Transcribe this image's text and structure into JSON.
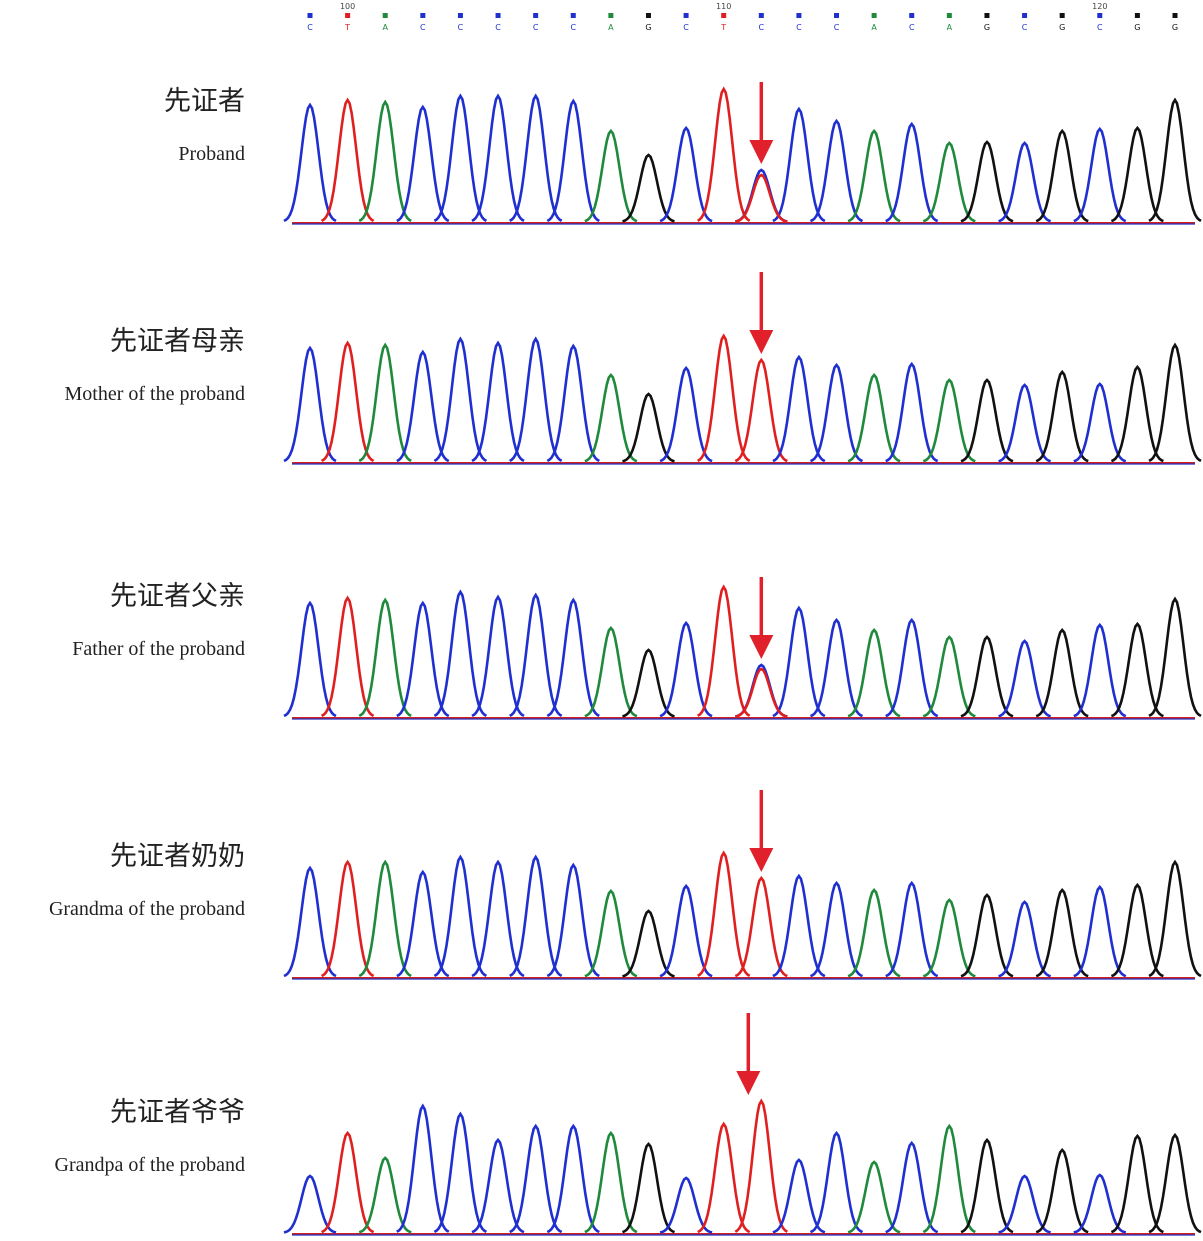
{
  "colors": {
    "A": "#1f8a3c",
    "C": "#1f2fd0",
    "G": "#111111",
    "T": "#e02020"
  },
  "sequence": [
    "C",
    "T",
    "A",
    "C",
    "C",
    "C",
    "C",
    "C",
    "A",
    "G",
    "C",
    "T",
    "C",
    "C",
    "C",
    "A",
    "C",
    "A",
    "G",
    "C",
    "G",
    "C",
    "G",
    "G"
  ],
  "ruler": [
    null,
    "100",
    null,
    null,
    null,
    null,
    null,
    null,
    null,
    null,
    null,
    "110",
    null,
    null,
    null,
    null,
    null,
    null,
    null,
    null,
    null,
    "120",
    null,
    null
  ],
  "panels": [
    {
      "title": "先证者",
      "subtitle": "Proband",
      "bases": [
        "C",
        "T",
        "A",
        "C",
        "C",
        "C",
        "C",
        "C",
        "A",
        "G",
        "C",
        "T",
        "C",
        "C",
        "C",
        "A",
        "C",
        "A",
        "G",
        "C",
        "G",
        "C",
        "G",
        "G"
      ],
      "heights": [
        117,
        122,
        120,
        115,
        126,
        126,
        126,
        121,
        91,
        67,
        94,
        133,
        52,
        113,
        101,
        91,
        98,
        79,
        80,
        79,
        91,
        93,
        94,
        122
      ],
      "overlap": {
        "index": 12,
        "base": "T",
        "height": 47
      }
    },
    {
      "title": "先证者母亲",
      "subtitle": "Mother of the proband",
      "bases": [
        "C",
        "T",
        "A",
        "C",
        "C",
        "C",
        "C",
        "C",
        "A",
        "G",
        "C",
        "T",
        "T",
        "C",
        "C",
        "A",
        "C",
        "A",
        "G",
        "C",
        "G",
        "C",
        "G",
        "G"
      ],
      "heights": [
        114,
        119,
        117,
        110,
        123,
        119,
        123,
        116,
        87,
        68,
        94,
        126,
        102,
        105,
        97,
        87,
        98,
        82,
        82,
        77,
        90,
        78,
        95,
        117
      ]
    },
    {
      "title": "先证者父亲",
      "subtitle": "Father of the proband",
      "bases": [
        "C",
        "T",
        "A",
        "C",
        "C",
        "C",
        "C",
        "C",
        "A",
        "G",
        "C",
        "T",
        "C",
        "C",
        "C",
        "A",
        "C",
        "A",
        "G",
        "C",
        "G",
        "C",
        "G",
        "G"
      ],
      "heights": [
        114,
        119,
        117,
        114,
        125,
        120,
        122,
        117,
        89,
        67,
        94,
        130,
        52,
        109,
        97,
        87,
        97,
        80,
        80,
        76,
        87,
        92,
        93,
        118
      ],
      "overlap": {
        "index": 12,
        "base": "T",
        "height": 48
      }
    },
    {
      "title": "先证者奶奶",
      "subtitle": "Grandma of the proband",
      "bases": [
        "C",
        "T",
        "A",
        "C",
        "C",
        "C",
        "C",
        "C",
        "A",
        "G",
        "C",
        "T",
        "T",
        "C",
        "C",
        "A",
        "C",
        "A",
        "G",
        "C",
        "G",
        "C",
        "G",
        "G"
      ],
      "heights": [
        109,
        115,
        115,
        105,
        120,
        115,
        120,
        112,
        86,
        66,
        91,
        124,
        99,
        101,
        94,
        87,
        94,
        77,
        82,
        75,
        87,
        90,
        92,
        115
      ]
    },
    {
      "title": "先证者爷爷",
      "subtitle": "Grandpa of the proband",
      "bases": [
        "C",
        "T",
        "A",
        "C",
        "C",
        "C",
        "C",
        "C",
        "A",
        "G",
        "C",
        "T",
        "T",
        "C",
        "C",
        "A",
        "C",
        "A",
        "G",
        "C",
        "G",
        "C",
        "G",
        "G"
      ],
      "heights": [
        57,
        100,
        75,
        127,
        119,
        93,
        107,
        107,
        100,
        89,
        55,
        109,
        132,
        73,
        100,
        71,
        90,
        107,
        93,
        57,
        83,
        58,
        97,
        98
      ]
    }
  ]
}
